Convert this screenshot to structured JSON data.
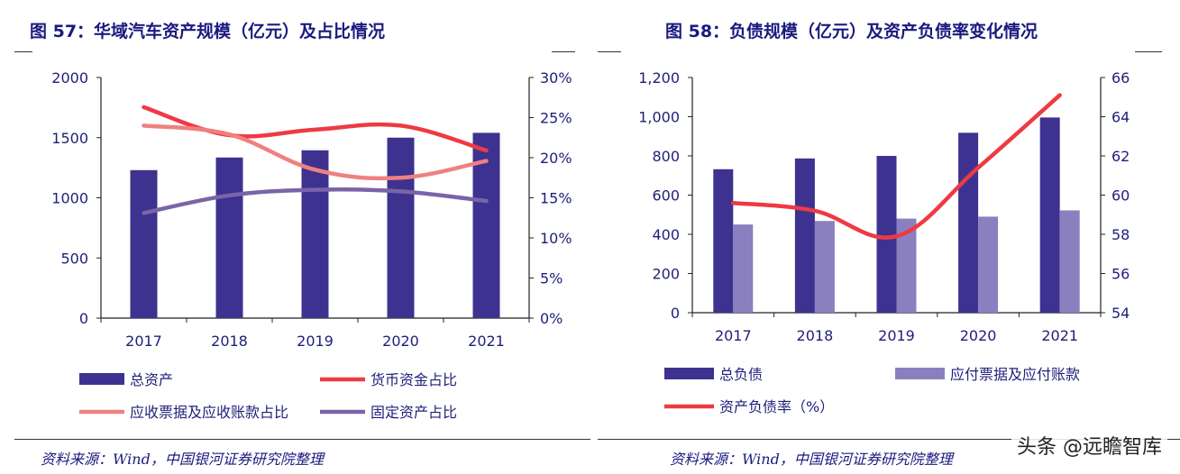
{
  "left": {
    "title": "图 57：华域汽车资产规模（亿元）及占比情况",
    "source": "资料来源：Wind，中国银河证券研究院整理"
  },
  "right": {
    "title": "图 58：负债规模（亿元）及资产负债率变化情况",
    "source": "资料来源：Wind，中国银河证券研究院整理"
  },
  "watermark": "头条 @远瞻智库",
  "chart_data": [
    {
      "type": "bar",
      "title": "图 57：华域汽车资产规模（亿元）及占比情况",
      "categories": [
        "2017",
        "2018",
        "2019",
        "2020",
        "2021"
      ],
      "y_left": {
        "ylim": [
          0,
          2000
        ],
        "ticks": [
          0,
          500,
          1000,
          1500,
          2000
        ],
        "tick_labels": [
          "0",
          "500",
          "1000",
          "1500",
          "2000"
        ]
      },
      "y_right": {
        "ylim": [
          0,
          30
        ],
        "ticks": [
          0,
          5,
          10,
          15,
          20,
          25,
          30
        ],
        "tick_labels": [
          "0%",
          "5%",
          "10%",
          "15%",
          "20%",
          "25%",
          "30%"
        ]
      },
      "grid": false,
      "legend_position": "bottom",
      "series": [
        {
          "name": "总资产",
          "kind": "bar",
          "axis": "left",
          "color": "#3d3290",
          "values": [
            1230,
            1335,
            1395,
            1500,
            1540
          ]
        },
        {
          "name": "货币资金占比",
          "kind": "line",
          "axis": "right",
          "color": "#ee3a43",
          "values": [
            26.3,
            22.8,
            23.5,
            24.0,
            20.9
          ]
        },
        {
          "name": "应收票据及应收账款占比",
          "kind": "line",
          "axis": "right",
          "color": "#f08080",
          "values": [
            24.0,
            22.9,
            18.5,
            17.5,
            19.6
          ]
        },
        {
          "name": "固定资产占比",
          "kind": "line",
          "axis": "right",
          "color": "#7a64a8",
          "values": [
            13.1,
            15.3,
            16.0,
            15.8,
            14.6
          ]
        }
      ]
    },
    {
      "type": "bar",
      "title": "图 58：负债规模（亿元）及资产负债率变化情况",
      "categories": [
        "2017",
        "2018",
        "2019",
        "2020",
        "2021"
      ],
      "y_left": {
        "ylim": [
          0,
          1200
        ],
        "ticks": [
          0,
          200,
          400,
          600,
          800,
          1000,
          1200
        ],
        "tick_labels": [
          "0",
          "200",
          "400",
          "600",
          "800",
          "1,000",
          "1,200"
        ]
      },
      "y_right": {
        "ylim": [
          54,
          66
        ],
        "ticks": [
          54,
          56,
          58,
          60,
          62,
          64,
          66
        ],
        "tick_labels": [
          "54",
          "56",
          "58",
          "60",
          "62",
          "64",
          "66"
        ]
      },
      "grid": false,
      "legend_position": "bottom",
      "series": [
        {
          "name": "总负债",
          "kind": "bar",
          "axis": "left",
          "color": "#3d3290",
          "values": [
            732,
            787,
            800,
            918,
            996
          ]
        },
        {
          "name": "应付票据及应付账款",
          "kind": "bar",
          "axis": "left",
          "color": "#8a80c0",
          "values": [
            450,
            468,
            480,
            490,
            522
          ]
        },
        {
          "name": "资产负债率（%）",
          "kind": "line",
          "axis": "right",
          "color": "#ee3a43",
          "values": [
            59.6,
            59.2,
            57.9,
            61.4,
            65.1
          ]
        }
      ]
    }
  ]
}
